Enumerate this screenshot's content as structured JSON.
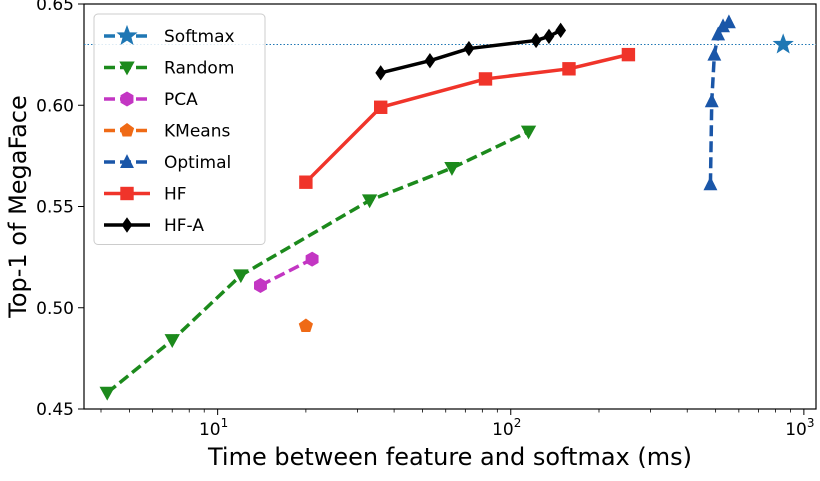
{
  "chart_data": {
    "type": "line",
    "xlabel": "Time between feature and softmax (ms)",
    "ylabel": "Top-1 of MegaFace",
    "xscale": "log",
    "xlim": [
      3.5,
      1100
    ],
    "ylim": [
      0.45,
      0.65
    ],
    "x_ticks": [
      10,
      100,
      1000
    ],
    "x_tick_labels": [
      {
        "base": "10",
        "exp": "1"
      },
      {
        "base": "10",
        "exp": "2"
      },
      {
        "base": "10",
        "exp": "3"
      }
    ],
    "y_ticks": [
      "0.45",
      "0.50",
      "0.55",
      "0.60",
      "0.65"
    ],
    "grid": false,
    "legend_position": "top-left",
    "reference_line": {
      "y": 0.63,
      "color": "#1f77b4",
      "style": "dotted"
    },
    "series": [
      {
        "name": "Softmax",
        "color": "#1f77b4",
        "marker": "star",
        "dash": "dashed",
        "x": [
          850
        ],
        "y": [
          0.63
        ]
      },
      {
        "name": "Random",
        "color": "#1c8a1c",
        "marker": "triangle-down",
        "dash": "dashed",
        "x": [
          4.2,
          7,
          12,
          33,
          63,
          115
        ],
        "y": [
          0.458,
          0.484,
          0.516,
          0.553,
          0.569,
          0.587
        ]
      },
      {
        "name": "PCA",
        "color": "#c336c3",
        "marker": "hexagon",
        "dash": "dashed",
        "x": [
          14,
          21
        ],
        "y": [
          0.511,
          0.524
        ]
      },
      {
        "name": "KMeans",
        "color": "#ef6a16",
        "marker": "pentagon",
        "dash": "dashed",
        "x": [
          20
        ],
        "y": [
          0.491
        ]
      },
      {
        "name": "Optimal",
        "color": "#1a56a8",
        "marker": "triangle-up",
        "dash": "dashed",
        "x": [
          480,
          485,
          495,
          510,
          530,
          555
        ],
        "y": [
          0.561,
          0.602,
          0.625,
          0.635,
          0.639,
          0.641
        ]
      },
      {
        "name": "HF",
        "color": "#f0342a",
        "marker": "square",
        "dash": "solid",
        "x": [
          20,
          36,
          82,
          158,
          252
        ],
        "y": [
          0.562,
          0.599,
          0.613,
          0.618,
          0.625
        ]
      },
      {
        "name": "HF-A",
        "color": "#000000",
        "marker": "diamond",
        "dash": "solid",
        "x": [
          36,
          53,
          72,
          122,
          135,
          148
        ],
        "y": [
          0.616,
          0.622,
          0.628,
          0.632,
          0.634,
          0.637
        ]
      }
    ]
  }
}
